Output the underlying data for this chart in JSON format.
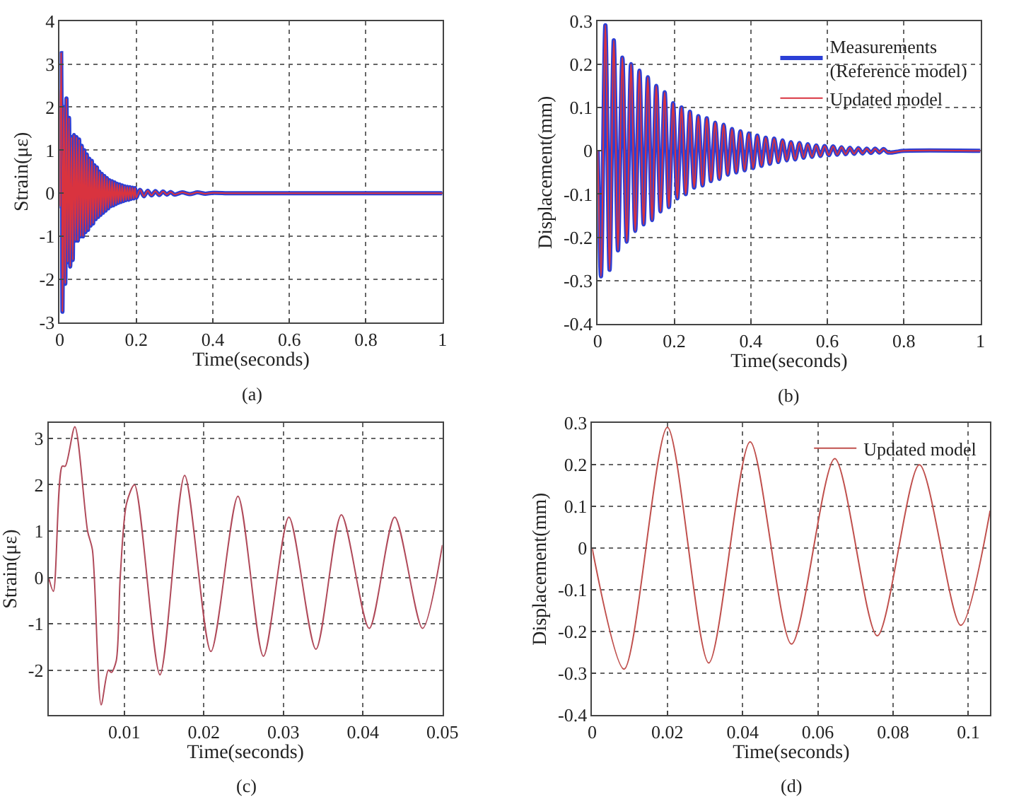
{
  "chart_data": [
    {
      "type": "line",
      "xlabel": "Time(seconds)",
      "ylabel": "Strain(με)",
      "annotations": [
        "(a)"
      ],
      "xlim": [
        0,
        1
      ],
      "ylim": [
        -3,
        4
      ],
      "xticks": [
        0,
        0.2,
        0.4,
        0.6,
        0.8,
        1
      ],
      "yticks": [
        -3,
        -2,
        -1,
        0,
        1,
        2,
        3,
        4
      ],
      "grid": true,
      "x": [
        0.0005,
        0.0011,
        0.0022,
        0.0026,
        0.0038,
        0.0054,
        0.006,
        0.0071,
        0.008,
        0.0084,
        0.009,
        0.0095,
        0.0103,
        0.0113,
        0.0145,
        0.0176,
        0.0209,
        0.0243,
        0.0275,
        0.0307,
        0.0341,
        0.0373,
        0.0408,
        0.044,
        0.0475,
        0.0508,
        0.0543,
        0.0576,
        0.0609,
        0.0642,
        0.0675,
        0.0708,
        0.0741,
        0.0774,
        0.0807,
        0.084,
        0.0873,
        0.0906,
        0.0939,
        0.0972,
        0.1005,
        0.1038,
        0.1071,
        0.1104,
        0.1137,
        0.117,
        0.1203,
        0.1236,
        0.1269,
        0.1302,
        0.1335,
        0.1368,
        0.1401,
        0.1434,
        0.1467,
        0.15,
        0.1533,
        0.1566,
        0.1599,
        0.1632,
        0.1665,
        0.17,
        0.1733,
        0.1766,
        0.18,
        0.1833,
        0.1866,
        0.19,
        0.1933,
        0.1966,
        0.2,
        0.21,
        0.22,
        0.23,
        0.24,
        0.25,
        0.26,
        0.27,
        0.28,
        0.29,
        0.3,
        0.32,
        0.34,
        0.36,
        0.38,
        0.4,
        0.45,
        1
      ],
      "series": [
        {
          "color": "#2b3fd6",
          "values": [
            0,
            -0.3,
            2.4,
            2.4,
            3.25,
            1.0,
            0.6,
            -2.75,
            -2.0,
            -2.05,
            -1.8,
            0,
            1.6,
            2.0,
            -2.1,
            2.2,
            -1.6,
            1.75,
            -1.7,
            1.3,
            -1.55,
            1.35,
            -1.1,
            1.3,
            -1.1,
            1.25,
            -1.0,
            1.1,
            -1.0,
            1.0,
            -0.9,
            0.9,
            -0.85,
            0.8,
            -0.75,
            0.75,
            -0.7,
            0.65,
            -0.6,
            0.6,
            -0.55,
            0.5,
            -0.5,
            0.45,
            -0.45,
            0.4,
            -0.4,
            0.35,
            -0.35,
            0.3,
            -0.3,
            0.28,
            -0.28,
            0.25,
            -0.25,
            0.22,
            -0.22,
            0.2,
            -0.2,
            0.18,
            -0.18,
            0.16,
            -0.16,
            0.15,
            -0.15,
            0.14,
            -0.13,
            0.13,
            -0.12,
            0.12,
            -0.1,
            0.08,
            -0.07,
            0.06,
            -0.05,
            0.05,
            -0.04,
            0.04,
            -0.03,
            0.03,
            -0.03,
            0.02,
            -0.02,
            0.02,
            -0.01,
            0.01,
            0,
            0
          ]
        },
        {
          "color": "#d9333f",
          "values": [
            0,
            -0.3,
            2.4,
            2.4,
            3.25,
            1.0,
            0.6,
            -2.75,
            -2.0,
            -2.05,
            -1.8,
            0,
            1.6,
            2.0,
            -2.1,
            2.2,
            -1.6,
            1.75,
            -1.7,
            1.3,
            -1.55,
            1.35,
            -1.1,
            1.3,
            -1.1,
            1.25,
            -1.0,
            1.1,
            -1.0,
            1.0,
            -0.9,
            0.9,
            -0.85,
            0.8,
            -0.75,
            0.75,
            -0.7,
            0.65,
            -0.6,
            0.6,
            -0.55,
            0.5,
            -0.5,
            0.45,
            -0.45,
            0.4,
            -0.4,
            0.35,
            -0.35,
            0.3,
            -0.3,
            0.28,
            -0.28,
            0.25,
            -0.25,
            0.22,
            -0.22,
            0.2,
            -0.2,
            0.18,
            -0.18,
            0.16,
            -0.16,
            0.15,
            -0.15,
            0.14,
            -0.13,
            0.13,
            -0.12,
            0.12,
            -0.1,
            0.08,
            -0.07,
            0.06,
            -0.05,
            0.05,
            -0.04,
            0.04,
            -0.03,
            0.03,
            -0.03,
            0.02,
            -0.02,
            0.02,
            -0.01,
            0.01,
            0,
            0
          ]
        }
      ]
    },
    {
      "type": "line",
      "xlabel": "Time(seconds)",
      "ylabel": "Displacement(mm)",
      "annotations": [
        "(b)"
      ],
      "xlim": [
        0,
        1
      ],
      "ylim": [
        -0.4,
        0.3
      ],
      "xticks": [
        0,
        0.2,
        0.4,
        0.6,
        0.8,
        1
      ],
      "yticks": [
        -0.4,
        -0.3,
        -0.2,
        -0.1,
        0,
        0.1,
        0.2,
        0.3
      ],
      "grid": true,
      "legend": "top right",
      "x": [
        0,
        0.0085,
        0.02,
        0.031,
        0.042,
        0.053,
        0.0645,
        0.0758,
        0.087,
        0.098,
        0.109,
        0.12,
        0.131,
        0.142,
        0.153,
        0.164,
        0.175,
        0.186,
        0.197,
        0.208,
        0.219,
        0.23,
        0.241,
        0.252,
        0.263,
        0.274,
        0.285,
        0.296,
        0.307,
        0.318,
        0.329,
        0.34,
        0.351,
        0.362,
        0.373,
        0.384,
        0.395,
        0.406,
        0.417,
        0.428,
        0.439,
        0.45,
        0.461,
        0.472,
        0.483,
        0.494,
        0.505,
        0.516,
        0.527,
        0.538,
        0.549,
        0.56,
        0.571,
        0.582,
        0.593,
        0.604,
        0.615,
        0.626,
        0.637,
        0.648,
        0.659,
        0.67,
        0.681,
        0.692,
        0.703,
        0.714,
        0.725,
        0.736,
        0.747,
        0.758,
        0.8,
        1
      ],
      "series": [
        {
          "name": "Measurements\n(Reference model)",
          "color": "#2b3fd6",
          "values": [
            0,
            -0.29,
            0.29,
            -0.275,
            0.255,
            -0.23,
            0.215,
            -0.21,
            0.2,
            -0.185,
            0.185,
            -0.17,
            0.17,
            -0.16,
            0.15,
            -0.14,
            0.135,
            -0.13,
            0.11,
            -0.11,
            0.1,
            -0.1,
            0.09,
            -0.085,
            0.08,
            -0.08,
            0.075,
            -0.07,
            0.065,
            -0.065,
            0.06,
            -0.055,
            0.05,
            -0.05,
            0.045,
            -0.045,
            0.04,
            -0.04,
            0.035,
            -0.035,
            0.03,
            -0.03,
            0.028,
            -0.026,
            0.024,
            -0.022,
            0.02,
            -0.02,
            0.018,
            -0.016,
            0.015,
            -0.014,
            0.012,
            -0.012,
            0.011,
            -0.01,
            0.01,
            -0.009,
            0.008,
            -0.008,
            0.007,
            -0.007,
            0.006,
            -0.006,
            0.005,
            -0.005,
            0.005,
            -0.004,
            0.004,
            -0.004,
            0,
            0
          ]
        },
        {
          "name": "Updated model",
          "color": "#d9333f",
          "values": [
            0,
            -0.29,
            0.29,
            -0.275,
            0.255,
            -0.23,
            0.215,
            -0.21,
            0.2,
            -0.185,
            0.185,
            -0.17,
            0.17,
            -0.16,
            0.15,
            -0.14,
            0.135,
            -0.13,
            0.11,
            -0.11,
            0.1,
            -0.1,
            0.09,
            -0.085,
            0.08,
            -0.08,
            0.075,
            -0.07,
            0.065,
            -0.065,
            0.06,
            -0.055,
            0.05,
            -0.05,
            0.045,
            -0.045,
            0.04,
            -0.04,
            0.035,
            -0.035,
            0.03,
            -0.03,
            0.028,
            -0.026,
            0.024,
            -0.022,
            0.02,
            -0.02,
            0.018,
            -0.016,
            0.015,
            -0.014,
            0.012,
            -0.012,
            0.011,
            -0.01,
            0.01,
            -0.009,
            0.008,
            -0.008,
            0.007,
            -0.007,
            0.006,
            -0.006,
            0.005,
            -0.005,
            0.005,
            -0.004,
            0.004,
            -0.004,
            0,
            0
          ]
        }
      ]
    },
    {
      "type": "line",
      "xlabel": "Time(seconds)",
      "ylabel": "Strain(με)",
      "annotations": [
        "(c)"
      ],
      "xlim": [
        0.0005,
        0.05
      ],
      "ylim": [
        -2.97,
        3.33
      ],
      "xticks": [
        0.01,
        0.02,
        0.03,
        0.04,
        0.05
      ],
      "yticks": [
        -2,
        -1,
        0,
        1,
        2,
        3
      ],
      "grid": true,
      "x": [
        0.0005,
        0.0011,
        0.0022,
        0.0026,
        0.0038,
        0.0054,
        0.006,
        0.0071,
        0.008,
        0.0084,
        0.009,
        0.0095,
        0.0103,
        0.0113,
        0.0145,
        0.0176,
        0.0209,
        0.0243,
        0.0275,
        0.0307,
        0.0341,
        0.0373,
        0.0408,
        0.044,
        0.0475,
        0.05
      ],
      "series": [
        {
          "color": "#b04a5a",
          "values": [
            0,
            -0.3,
            2.4,
            2.4,
            3.25,
            1.0,
            0.6,
            -2.75,
            -2.0,
            -2.05,
            -1.8,
            0,
            1.6,
            2.0,
            -2.1,
            2.2,
            -1.6,
            1.75,
            -1.7,
            1.3,
            -1.55,
            1.35,
            -1.1,
            1.3,
            -1.1,
            0.7
          ]
        }
      ]
    },
    {
      "type": "line",
      "xlabel": "Time(seconds)",
      "ylabel": "Displacement(mm)",
      "annotations": [
        "(d)"
      ],
      "xlim": [
        0,
        0.1058
      ],
      "ylim": [
        -0.4,
        0.3
      ],
      "xticks": [
        0,
        0.02,
        0.04,
        0.06,
        0.08,
        0.1
      ],
      "yticks": [
        -0.4,
        -0.3,
        -0.2,
        -0.1,
        0,
        0.1,
        0.2,
        0.3
      ],
      "grid": true,
      "legend": "top right",
      "x": [
        0,
        0.0085,
        0.02,
        0.031,
        0.042,
        0.053,
        0.0645,
        0.0758,
        0.087,
        0.098,
        0.1058
      ],
      "series": [
        {
          "name": "Updated model",
          "color": "#c0504d",
          "values": [
            0,
            -0.29,
            0.29,
            -0.275,
            0.255,
            -0.23,
            0.215,
            -0.21,
            0.2,
            -0.185,
            0.09
          ]
        }
      ]
    }
  ]
}
